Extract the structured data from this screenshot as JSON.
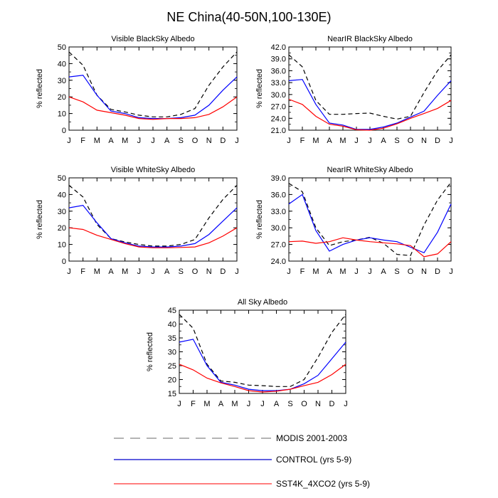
{
  "figure_title": "NE China(40-50N,100-130E)",
  "months": [
    "J",
    "F",
    "M",
    "A",
    "M",
    "J",
    "J",
    "A",
    "S",
    "O",
    "N",
    "D",
    "J"
  ],
  "colors": {
    "modis": "#000000",
    "control": "#0000ff",
    "sst4k": "#ff0000",
    "legend_modis": "#888888",
    "legend_control": "#0000cc",
    "legend_sst4k": "#ff3333"
  },
  "legend": [
    {
      "key": "modis",
      "label": "MODIS 2001-2003"
    },
    {
      "key": "control",
      "label": "CONTROL (yrs 5-9)"
    },
    {
      "key": "sst4k",
      "label": "SST4K_4XCO2 (yrs 5-9)"
    }
  ],
  "chart_data": [
    {
      "type": "line",
      "title": "Visible BlackSky Albedo",
      "ylabel": "% reflected",
      "xlabel": "",
      "ylim": [
        0,
        50
      ],
      "yticks": [
        "0",
        "10",
        "20",
        "30",
        "40",
        "50"
      ],
      "yminor": 5,
      "categories": [
        "J",
        "F",
        "M",
        "A",
        "M",
        "J",
        "J",
        "A",
        "S",
        "O",
        "N",
        "D",
        "J"
      ],
      "series": [
        {
          "name": "MODIS 2001-2003",
          "key": "modis",
          "values": [
            47,
            39,
            21,
            12.5,
            11,
            9,
            8,
            8,
            9.5,
            13,
            27,
            38,
            47
          ]
        },
        {
          "name": "CONTROL (yrs 5-9)",
          "key": "control",
          "values": [
            32,
            33,
            21,
            11.5,
            10,
            7.5,
            7,
            7,
            7.5,
            9,
            15,
            24,
            32
          ]
        },
        {
          "name": "SST4K_4XCO2 (yrs 5-9)",
          "key": "sst4k",
          "values": [
            20,
            17,
            12,
            10.5,
            9,
            7,
            6.5,
            7,
            7,
            7.5,
            9.5,
            14,
            20
          ]
        }
      ]
    },
    {
      "type": "line",
      "title": "NearIR BlackSky Albedo",
      "ylabel": "% reflected",
      "xlabel": "",
      "ylim": [
        21,
        42
      ],
      "yticks": [
        "21.0",
        "24.0",
        "27.0",
        "30.0",
        "33.0",
        "36.0",
        "39.0",
        "42.0"
      ],
      "yminor": 1.5,
      "categories": [
        "J",
        "F",
        "M",
        "A",
        "M",
        "J",
        "J",
        "A",
        "S",
        "O",
        "N",
        "D",
        "J"
      ],
      "series": [
        {
          "name": "MODIS 2001-2003",
          "key": "modis",
          "values": [
            40,
            37,
            28.5,
            25,
            25,
            25.2,
            25.3,
            24.5,
            23.8,
            24.5,
            30.5,
            36,
            40
          ]
        },
        {
          "name": "CONTROL (yrs 5-9)",
          "key": "control",
          "values": [
            33.5,
            33.8,
            27.5,
            22.8,
            22.3,
            21.2,
            21.2,
            21.8,
            22.8,
            24.3,
            25.8,
            29.8,
            33.5
          ]
        },
        {
          "name": "SST4K_4XCO2 (yrs 5-9)",
          "key": "sst4k",
          "values": [
            28.8,
            27.5,
            24.5,
            22.5,
            22,
            21.1,
            21,
            21.5,
            22.6,
            24,
            25.2,
            26.5,
            28.5
          ]
        }
      ]
    },
    {
      "type": "line",
      "title": "Visible WhiteSky Albedo",
      "ylabel": "% reflected",
      "xlabel": "",
      "ylim": [
        0,
        50
      ],
      "yticks": [
        "0",
        "10",
        "20",
        "30",
        "40",
        "50"
      ],
      "yminor": 5,
      "categories": [
        "J",
        "F",
        "M",
        "A",
        "M",
        "J",
        "J",
        "A",
        "S",
        "O",
        "N",
        "D",
        "J"
      ],
      "series": [
        {
          "name": "MODIS 2001-2003",
          "key": "modis",
          "values": [
            45.5,
            38.5,
            22,
            13.5,
            11.5,
            10,
            9,
            9,
            10,
            13,
            26,
            37,
            45.5
          ]
        },
        {
          "name": "CONTROL (yrs 5-9)",
          "key": "control",
          "values": [
            32,
            33.5,
            23,
            13.5,
            11,
            9,
            8.5,
            8.5,
            9,
            10.5,
            16,
            24,
            32
          ]
        },
        {
          "name": "SST4K_4XCO2 (yrs 5-9)",
          "key": "sst4k",
          "values": [
            20,
            19,
            15.5,
            13,
            10.5,
            8.5,
            8,
            8,
            8.2,
            8.5,
            11,
            15,
            20
          ]
        }
      ]
    },
    {
      "type": "line",
      "title": "NearIR WhiteSky Albedo",
      "ylabel": "% reflected",
      "xlabel": "",
      "ylim": [
        24,
        39
      ],
      "yticks": [
        "24.0",
        "27.0",
        "30.0",
        "33.0",
        "36.0",
        "39.0"
      ],
      "yminor": 1.5,
      "categories": [
        "J",
        "F",
        "M",
        "A",
        "M",
        "J",
        "J",
        "A",
        "S",
        "O",
        "N",
        "D",
        "J"
      ],
      "series": [
        {
          "name": "MODIS 2001-2003",
          "key": "modis",
          "values": [
            38,
            36.5,
            30,
            26.8,
            27.5,
            27.8,
            28.3,
            27.2,
            25.2,
            25,
            30.5,
            35,
            38.2
          ]
        },
        {
          "name": "CONTROL (yrs 5-9)",
          "key": "control",
          "values": [
            34.3,
            36,
            29.5,
            25.8,
            27,
            27.8,
            28.2,
            27.8,
            27.5,
            26.5,
            25.5,
            29.2,
            34.3
          ]
        },
        {
          "name": "SST4K_4XCO2 (yrs 5-9)",
          "key": "sst4k",
          "values": [
            27.5,
            27.6,
            27.2,
            27.5,
            28.2,
            27.8,
            27.5,
            27.3,
            27.1,
            26.8,
            24.8,
            25.3,
            27.5
          ]
        }
      ]
    },
    {
      "type": "line",
      "title": "All Sky Albedo",
      "ylabel": "% reflected",
      "xlabel": "",
      "ylim": [
        15,
        45
      ],
      "yticks": [
        "15",
        "20",
        "25",
        "30",
        "35",
        "40",
        "45"
      ],
      "yminor": 2.5,
      "categories": [
        "J",
        "F",
        "M",
        "A",
        "M",
        "J",
        "J",
        "A",
        "S",
        "O",
        "N",
        "D",
        "J"
      ],
      "series": [
        {
          "name": "MODIS 2001-2003",
          "key": "modis",
          "values": [
            43.5,
            38.5,
            25.5,
            19.5,
            19,
            18,
            17.8,
            17.5,
            17.5,
            20,
            28,
            37,
            43.5
          ]
        },
        {
          "name": "CONTROL (yrs 5-9)",
          "key": "control",
          "values": [
            33.5,
            34.5,
            25,
            19,
            18,
            16.5,
            16,
            16,
            16.5,
            18.5,
            21.5,
            27.5,
            33.5
          ]
        },
        {
          "name": "SST4K_4XCO2 (yrs 5-9)",
          "key": "sst4k",
          "values": [
            25.5,
            23.5,
            20.5,
            18.8,
            17.5,
            16,
            15.5,
            15.8,
            16.5,
            17.8,
            19,
            21.8,
            25.5
          ]
        }
      ]
    }
  ]
}
